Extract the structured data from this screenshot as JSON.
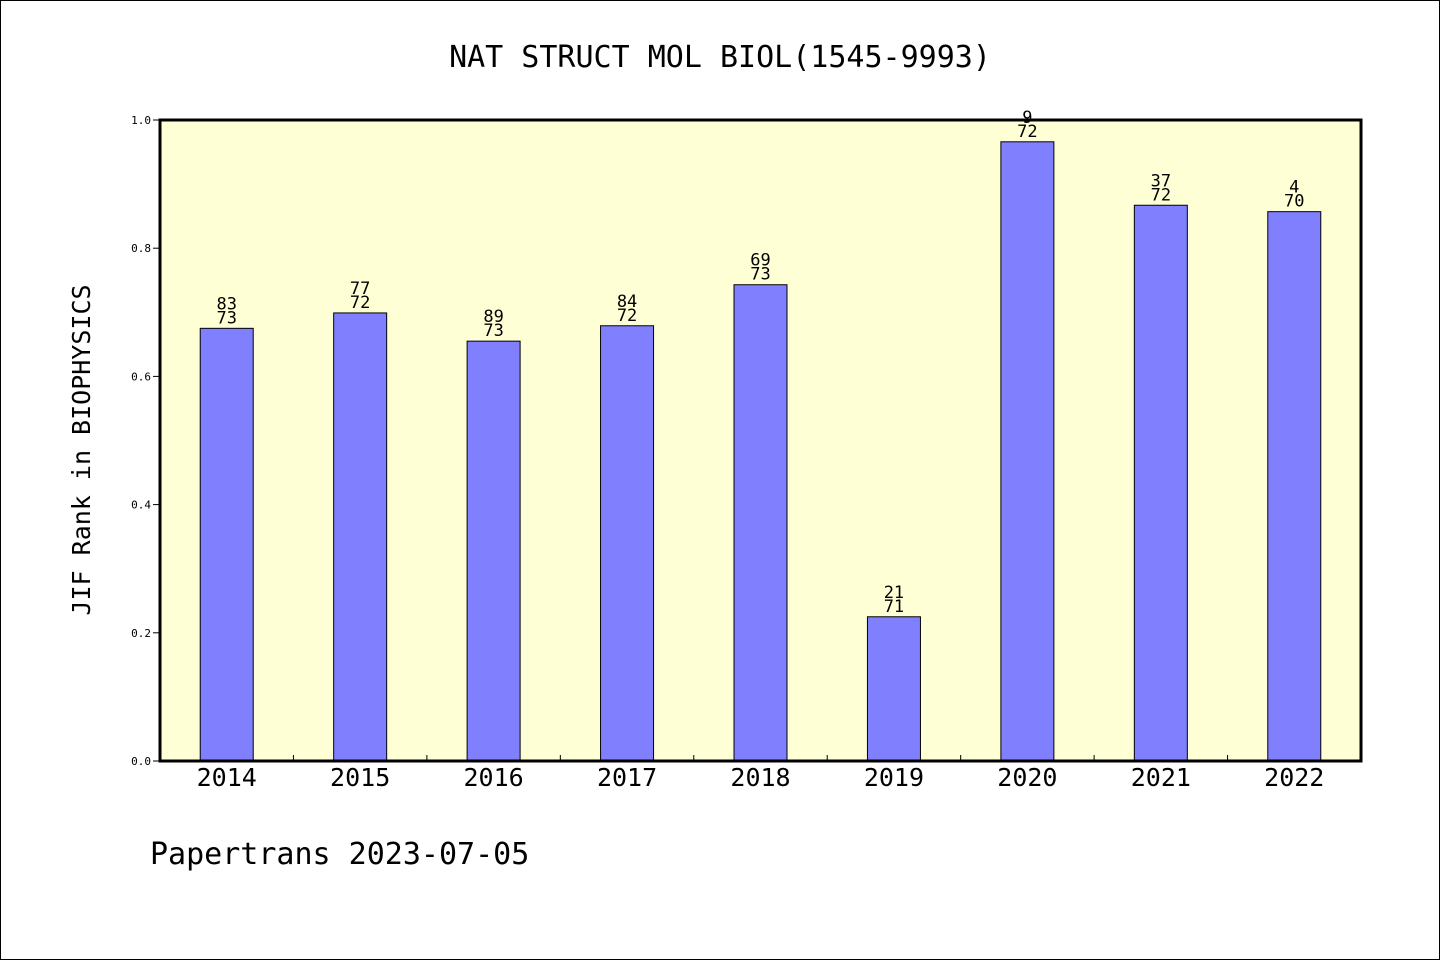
{
  "chart_data": {
    "type": "bar",
    "title": "NAT STRUCT MOL BIOL(1545-9993)",
    "ylabel": "JIF Rank in BIOPHYSICS",
    "xlabel": "",
    "ylim": [
      0,
      1.0
    ],
    "yticks": [
      "0.0",
      "0.2",
      "0.4",
      "0.6",
      "0.8",
      "1.0"
    ],
    "categories": [
      "2014",
      "2015",
      "2016",
      "2017",
      "2018",
      "2019",
      "2020",
      "2021",
      "2022"
    ],
    "values": [
      0.675,
      0.699,
      0.655,
      0.679,
      0.743,
      0.225,
      0.966,
      0.867,
      0.857
    ],
    "labels_top": [
      "83",
      "77",
      "89",
      "84",
      "69",
      "21",
      "9",
      "37",
      "4"
    ],
    "labels_bottom": [
      "73",
      "72",
      "73",
      "72",
      "73",
      "71",
      "72",
      "72",
      "70"
    ],
    "plot_background": "#ffffd6",
    "bar_color": "#8080ff",
    "grid": false
  },
  "footer": {
    "credit": "Papertrans 2023-07-05"
  }
}
